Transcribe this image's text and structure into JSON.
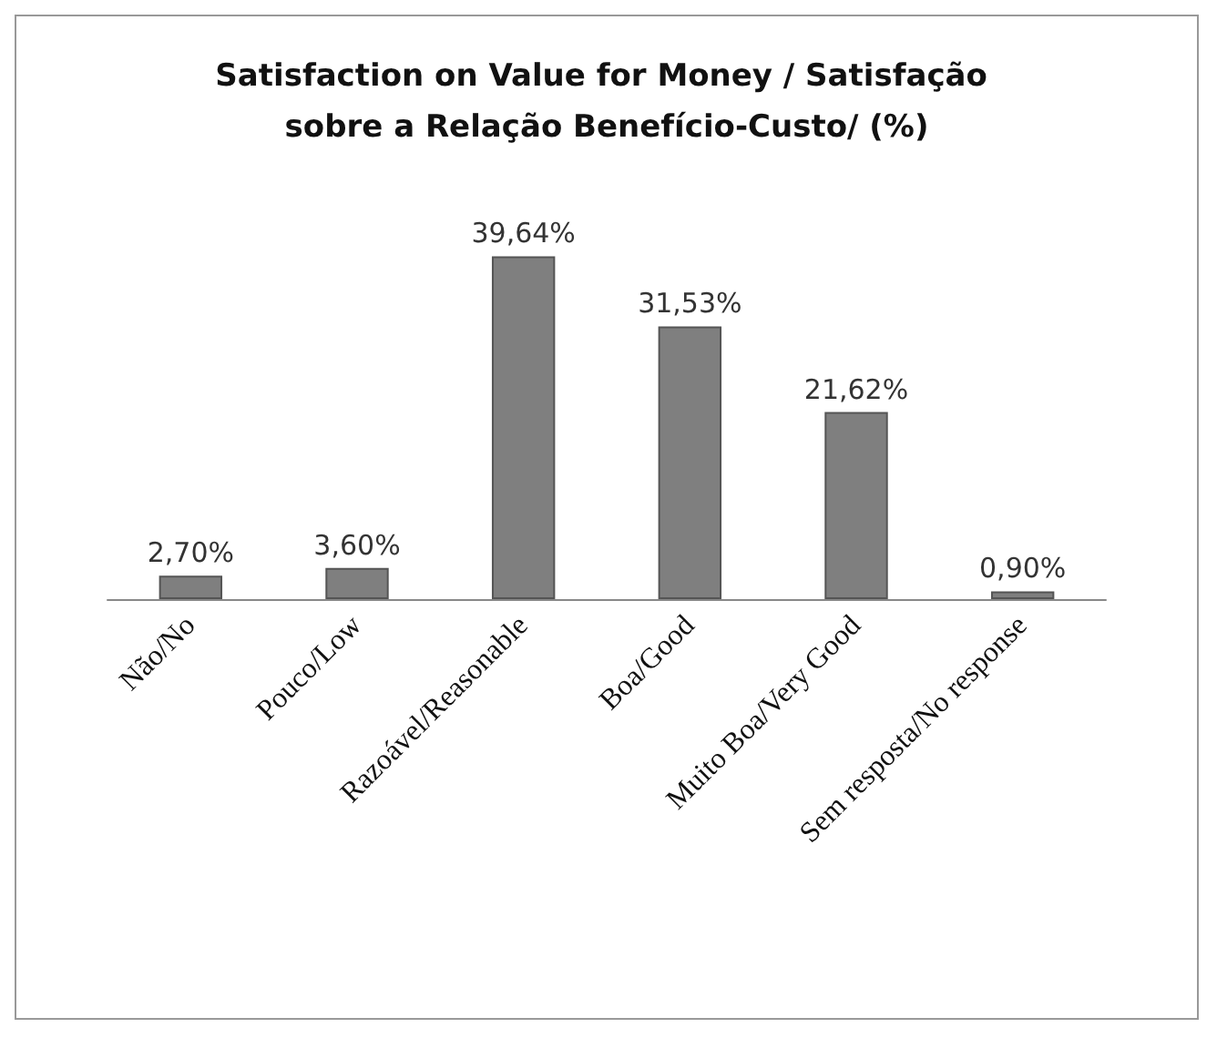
{
  "chart_data": {
    "type": "bar",
    "title": "Satisfaction on Value for Money / Satisfação sobre a Relação Benefício-Custo/ (%)",
    "categories": [
      "Não/No",
      "Pouco/Low",
      "Razoável/Reasonable",
      "Boa/Good",
      "Muito Boa/Very Good",
      "Sem resposta/No response"
    ],
    "values": [
      2.7,
      3.6,
      39.64,
      31.53,
      21.62,
      0.9
    ],
    "value_labels": [
      "2,70%",
      "3,60%",
      "39,64%",
      "31,53%",
      "21,62%",
      "0,90%"
    ],
    "color": "#7f7f7f"
  }
}
